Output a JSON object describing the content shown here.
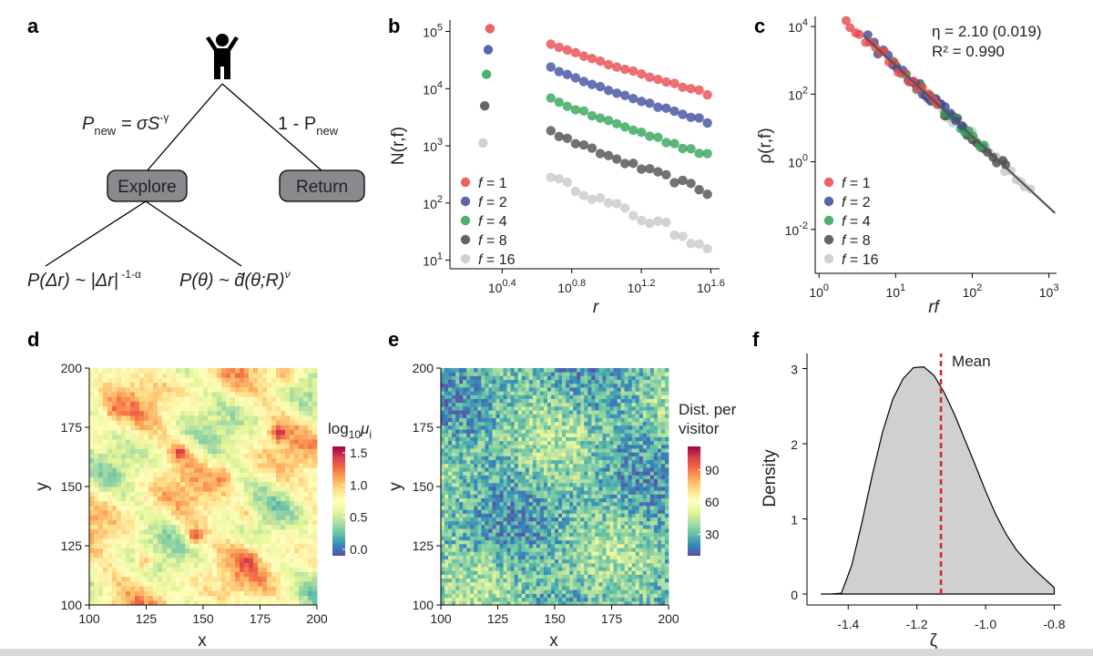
{
  "panels": {
    "a": {
      "letter": "a",
      "explore": "Explore",
      "return": "Return",
      "p_new_eq": "P",
      "p_new_sub": "new",
      "p_new_rhs": " = σS",
      "p_new_exp": "-γ",
      "one_minus": "1 - P",
      "one_minus_sub": "new",
      "dist_r": "P(Δr) ~ |Δr|",
      "dist_r_exp": " -1-α",
      "dist_theta": "P(θ) ~ d̃(θ;R)",
      "dist_theta_exp": "ν"
    },
    "b": {
      "letter": "b"
    },
    "c": {
      "letter": "c"
    },
    "d": {
      "letter": "d"
    },
    "e": {
      "letter": "e"
    },
    "f": {
      "letter": "f"
    }
  },
  "chart_data": [
    {
      "panel": "b",
      "type": "scatter",
      "xscale": "log",
      "yscale": "log",
      "xlabel": "r",
      "ylabel": "N(r,f)",
      "xticks": [
        {
          "v": 0.4,
          "base": "10",
          "exp": "0.4"
        },
        {
          "v": 0.8,
          "base": "10",
          "exp": "0.8"
        },
        {
          "v": 1.2,
          "base": "10",
          "exp": "1.2"
        },
        {
          "v": 1.6,
          "base": "10",
          "exp": "1.6"
        }
      ],
      "yticks": [
        {
          "v": 1,
          "base": "10",
          "exp": "1"
        },
        {
          "v": 2,
          "base": "10",
          "exp": "2"
        },
        {
          "v": 3,
          "base": "10",
          "exp": "3"
        },
        {
          "v": 4,
          "base": "10",
          "exp": "4"
        },
        {
          "v": 5,
          "base": "10",
          "exp": "5"
        }
      ],
      "xlim_log10": [
        0.1,
        1.65
      ],
      "ylim_log10": [
        0.85,
        5.2
      ],
      "isolated_points": [
        {
          "series": "f = 1",
          "x_log10": 0.33,
          "y_log10": 5.05
        },
        {
          "series": "f = 2",
          "x_log10": 0.32,
          "y_log10": 4.68
        },
        {
          "series": "f = 4",
          "x_log10": 0.31,
          "y_log10": 4.25
        },
        {
          "series": "f = 8",
          "x_log10": 0.3,
          "y_log10": 3.7
        },
        {
          "series": "f = 16",
          "x_log10": 0.29,
          "y_log10": 3.05
        }
      ],
      "series": [
        {
          "name": "f = 1",
          "label_f": "f",
          "label_val": " = 1",
          "color": "#e8474f",
          "start_y_log10": 4.78,
          "end_y_log10": 3.92,
          "noise": 0.02
        },
        {
          "name": "f = 2",
          "label_f": "f",
          "label_val": " = 2",
          "color": "#3b4a9c",
          "start_y_log10": 4.37,
          "end_y_log10": 3.42,
          "noise": 0.02
        },
        {
          "name": "f = 4",
          "label_f": "f",
          "label_val": " = 4",
          "color": "#2fa354",
          "start_y_log10": 3.83,
          "end_y_log10": 2.85,
          "noise": 0.03
        },
        {
          "name": "f = 8",
          "label_f": "f",
          "label_val": " = 8",
          "color": "#4a4a4a",
          "start_y_log10": 3.25,
          "end_y_log10": 2.2,
          "noise": 0.04
        },
        {
          "name": "f = 16",
          "label_f": "f",
          "label_val": " = 16",
          "color": "#c8c8c8",
          "start_y_log10": 2.48,
          "end_y_log10": 1.28,
          "noise": 0.08
        }
      ],
      "x_range_log10": [
        0.68,
        1.58
      ],
      "n_points": 20
    },
    {
      "panel": "c",
      "type": "scatter",
      "xscale": "log",
      "yscale": "log",
      "xlabel": "rf",
      "ylabel": "ρ(r,f)",
      "annotation_eta": "η = 2.10 (0.019)",
      "annotation_r2": "R² = 0.990",
      "xticks": [
        {
          "v": 0,
          "base": "10",
          "exp": "0"
        },
        {
          "v": 1,
          "base": "10",
          "exp": "1"
        },
        {
          "v": 2,
          "base": "10",
          "exp": "2"
        },
        {
          "v": 3,
          "base": "10",
          "exp": "3"
        }
      ],
      "yticks": [
        {
          "v": -2,
          "base": "10",
          "exp": "-2"
        },
        {
          "v": 0,
          "base": "10",
          "exp": "0"
        },
        {
          "v": 2,
          "base": "10",
          "exp": "2"
        },
        {
          "v": 4,
          "base": "10",
          "exp": "4"
        }
      ],
      "xlim_log10": [
        -0.05,
        3.1
      ],
      "ylim_log10": [
        -3.3,
        4.3
      ],
      "fit_line": {
        "slope": -2.1,
        "intercept_log10": 4.95,
        "color": "#555555"
      },
      "series": [
        {
          "name": "f = 1",
          "label_f": "f",
          "label_val": " = 1",
          "color": "#e8474f",
          "x_range_log10": [
            0.35,
            1.55
          ]
        },
        {
          "name": "f = 2",
          "label_f": "f",
          "label_val": " = 2",
          "color": "#3b4a9c",
          "x_range_log10": [
            0.65,
            1.85
          ]
        },
        {
          "name": "f = 4",
          "label_f": "f",
          "label_val": " = 4",
          "color": "#2fa354",
          "x_range_log10": [
            0.95,
            2.15
          ]
        },
        {
          "name": "f = 8",
          "label_f": "f",
          "label_val": " = 8",
          "color": "#4a4a4a",
          "x_range_log10": [
            1.25,
            2.45
          ]
        },
        {
          "name": "f = 16",
          "label_f": "f",
          "label_val": " = 16",
          "color": "#c8c8c8",
          "x_range_log10": [
            1.55,
            2.75
          ]
        }
      ],
      "n_points": 20
    },
    {
      "panel": "d",
      "type": "heatmap",
      "xlabel": "x",
      "ylabel": "y",
      "xticks": [
        "100",
        "125",
        "150",
        "175",
        "200"
      ],
      "yticks": [
        "100",
        "125",
        "150",
        "175",
        "200"
      ],
      "xlim": [
        100,
        200
      ],
      "ylim": [
        100,
        200
      ],
      "colorbar_title": "log",
      "colorbar_sub": "10",
      "colorbar_var": "μ",
      "colorbar_var_sub": "i",
      "colorbar_ticks": [
        "0.0",
        "0.5",
        "1.0",
        "1.5"
      ],
      "colorbar_range": [
        -0.1,
        1.6
      ],
      "hotspots": [
        {
          "x": 124,
          "y": 119,
          "v": 1.5
        },
        {
          "x": 146,
          "y": 129,
          "v": 1.45
        },
        {
          "x": 140,
          "y": 165,
          "v": 1.4
        },
        {
          "x": 183,
          "y": 173,
          "v": 1.35
        },
        {
          "x": 168,
          "y": 138,
          "v": 1.3
        },
        {
          "x": 170,
          "y": 120,
          "v": 1.2
        },
        {
          "x": 186,
          "y": 196,
          "v": 1.2
        },
        {
          "x": 110,
          "y": 182,
          "v": 1.1
        },
        {
          "x": 160,
          "y": 155,
          "v": 1.2
        }
      ]
    },
    {
      "panel": "e",
      "type": "heatmap",
      "xlabel": "x",
      "ylabel": "y",
      "xticks": [
        "100",
        "125",
        "150",
        "175",
        "200"
      ],
      "yticks": [
        "100",
        "125",
        "150",
        "175",
        "200"
      ],
      "xlim": [
        100,
        200
      ],
      "ylim": [
        100,
        200
      ],
      "colorbar_title_1": "Dist. per",
      "colorbar_title_2": "visitor",
      "colorbar_ticks": [
        "30",
        "60",
        "90"
      ],
      "colorbar_range": [
        10,
        112
      ]
    },
    {
      "panel": "f",
      "type": "area",
      "xlabel": "ζ",
      "ylabel": "Density",
      "xticks": [
        "-1.4",
        "-1.2",
        "-1.0",
        "-0.8"
      ],
      "yticks": [
        "0",
        "1",
        "2",
        "3"
      ],
      "xlim": [
        -1.52,
        -0.78
      ],
      "ylim": [
        0,
        3.2
      ],
      "mean_label": "Mean",
      "mean_value": -1.13,
      "mean_color": "#d62728",
      "density_x": [
        -1.48,
        -1.45,
        -1.42,
        -1.39,
        -1.36,
        -1.33,
        -1.3,
        -1.27,
        -1.24,
        -1.21,
        -1.18,
        -1.15,
        -1.12,
        -1.09,
        -1.06,
        -1.03,
        -1.0,
        -0.97,
        -0.94,
        -0.91,
        -0.88,
        -0.85,
        -0.82,
        -0.8
      ],
      "density_y": [
        0.0,
        0.03,
        0.15,
        0.5,
        1.05,
        1.65,
        2.2,
        2.62,
        2.88,
        3.02,
        3.03,
        2.92,
        2.7,
        2.42,
        2.1,
        1.78,
        1.45,
        1.15,
        0.9,
        0.7,
        0.55,
        0.42,
        0.3,
        0.22
      ]
    }
  ]
}
